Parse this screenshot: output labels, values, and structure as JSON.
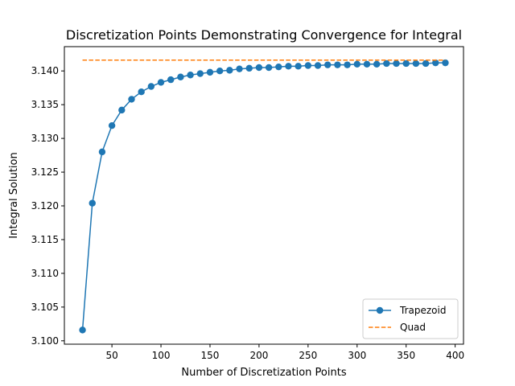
{
  "chart_data": {
    "type": "line",
    "title": "Discretization Points Demonstrating Convergence for Integral",
    "xlabel": "Number of Discretization Points",
    "ylabel": "Integral Solution",
    "xlim": [
      1.5,
      408.5
    ],
    "ylim": [
      3.0995,
      3.1436
    ],
    "xticks": [
      50,
      100,
      150,
      200,
      250,
      300,
      350,
      400
    ],
    "yticks": [
      3.1,
      3.105,
      3.11,
      3.115,
      3.12,
      3.125,
      3.13,
      3.135,
      3.14
    ],
    "ytick_decimals": 3,
    "grid": false,
    "legend_position": "bottom-right",
    "series": [
      {
        "name": "Trapezoid",
        "color": "#1f77b4",
        "style": "solid",
        "marker": "circle",
        "x": [
          20,
          30,
          40,
          50,
          60,
          70,
          80,
          90,
          100,
          110,
          120,
          130,
          140,
          150,
          160,
          170,
          180,
          190,
          200,
          210,
          220,
          230,
          240,
          250,
          260,
          270,
          280,
          290,
          300,
          310,
          320,
          330,
          340,
          350,
          360,
          370,
          380,
          390
        ],
        "y": [
          3.1016,
          3.1204,
          3.128,
          3.1319,
          3.1342,
          3.1358,
          3.1369,
          3.1377,
          3.1383,
          3.1387,
          3.1391,
          3.1394,
          3.1396,
          3.1398,
          3.14,
          3.1401,
          3.1403,
          3.1404,
          3.1405,
          3.1405,
          3.1406,
          3.1407,
          3.1407,
          3.1408,
          3.1408,
          3.1409,
          3.1409,
          3.1409,
          3.141,
          3.141,
          3.141,
          3.1411,
          3.1411,
          3.1411,
          3.1411,
          3.1411,
          3.1412,
          3.1412
        ]
      },
      {
        "name": "Quad",
        "color": "#ff7f0e",
        "style": "dashed",
        "marker": "none",
        "x": [
          20,
          390
        ],
        "y": [
          3.1416,
          3.1416
        ]
      }
    ]
  }
}
